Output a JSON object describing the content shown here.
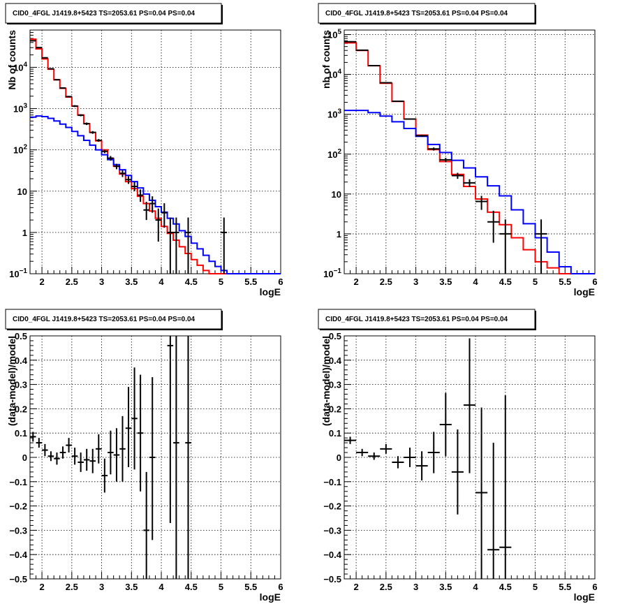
{
  "chart_data": [
    {
      "type": "line",
      "title": "CID0_4FGL J1419.8+5423 TS=2053.61 PS=0.04 PS=0.04",
      "xlabel": "logE",
      "ylabel": "Nb of counts",
      "xlim": [
        1.8,
        6
      ],
      "ylim": [
        0.1,
        80000
      ],
      "yscale": "log",
      "grid": true,
      "xticks": [
        "2",
        "2.5",
        "3",
        "3.5",
        "4",
        "4.5",
        "5",
        "5.5",
        "6"
      ],
      "yticks": [
        {
          "v": 0.1,
          "base": "10",
          "exp": "−1"
        },
        {
          "v": 1,
          "label": "1"
        },
        {
          "v": 10,
          "label": "10"
        },
        {
          "v": 100,
          "base": "10",
          "exp": "2"
        },
        {
          "v": 1000,
          "base": "10",
          "exp": "3"
        },
        {
          "v": 10000,
          "base": "10",
          "exp": "4"
        }
      ],
      "step_series": [
        {
          "color": "#ff0000",
          "edges": [
            1.8,
            1.9,
            2.0,
            2.1,
            2.2,
            2.3,
            2.4,
            2.5,
            2.6,
            2.7,
            2.8,
            2.9,
            3.0,
            3.1,
            3.2,
            3.3,
            3.4,
            3.5,
            3.6,
            3.7,
            3.8,
            3.9,
            4.0,
            4.1,
            4.2,
            4.3,
            4.4,
            4.5,
            4.6,
            4.7,
            4.8,
            4.9,
            5.0,
            5.1,
            5.2,
            5.3,
            5.4,
            5.5,
            5.6,
            5.7,
            5.8,
            5.9,
            6.0
          ],
          "values": [
            48000,
            28000,
            16000,
            9000,
            5000,
            3100,
            1900,
            1150,
            700,
            430,
            265,
            165,
            100,
            62,
            40,
            26,
            17,
            11.5,
            7.5,
            5,
            3.3,
            2.2,
            1.4,
            0.95,
            0.65,
            0.45,
            0.31,
            0.22,
            0.16,
            0.12,
            0.1,
            0.1,
            0.1,
            0.1,
            0.1,
            0.1,
            0.1,
            0.1,
            0.1,
            0.1,
            0.1,
            0.1
          ]
        },
        {
          "color": "#0000ff",
          "edges": [
            1.8,
            1.9,
            2.0,
            2.1,
            2.2,
            2.3,
            2.4,
            2.5,
            2.6,
            2.7,
            2.8,
            2.9,
            3.0,
            3.1,
            3.2,
            3.3,
            3.4,
            3.5,
            3.6,
            3.7,
            3.8,
            3.9,
            4.0,
            4.1,
            4.2,
            4.3,
            4.4,
            4.5,
            4.6,
            4.7,
            4.8,
            4.9,
            5.0,
            5.1,
            5.2,
            5.3,
            5.4,
            5.5,
            5.6,
            5.7,
            5.8,
            5.9,
            6.0
          ],
          "values": [
            620,
            660,
            640,
            580,
            500,
            420,
            350,
            280,
            220,
            170,
            130,
            100,
            76,
            58,
            44,
            33,
            24,
            17,
            12,
            8.5,
            6,
            4.2,
            3.1,
            2.2,
            1.6,
            1.1,
            0.8,
            0.55,
            0.4,
            0.28,
            0.2,
            0.15,
            0.12,
            0.1,
            0.1,
            0.1,
            0.1,
            0.1,
            0.1,
            0.1,
            0.1,
            0.1
          ]
        }
      ],
      "points": [
        {
          "x": 1.85,
          "y": 44000,
          "xerr": 0.05,
          "lo": 43000,
          "hi": 45000
        },
        {
          "x": 1.95,
          "y": 30000,
          "xerr": 0.05,
          "lo": 29000,
          "hi": 31000
        },
        {
          "x": 2.05,
          "y": 17000,
          "xerr": 0.05,
          "lo": 16600,
          "hi": 17400
        },
        {
          "x": 2.15,
          "y": 9200,
          "xerr": 0.05,
          "lo": 9000,
          "hi": 9400
        },
        {
          "x": 2.25,
          "y": 5000,
          "xerr": 0.05,
          "lo": 4860,
          "hi": 5140
        },
        {
          "x": 2.35,
          "y": 3150,
          "xerr": 0.05,
          "lo": 3040,
          "hi": 3260
        },
        {
          "x": 2.45,
          "y": 1950,
          "xerr": 0.05,
          "lo": 1870,
          "hi": 2030
        },
        {
          "x": 2.55,
          "y": 1150,
          "xerr": 0.05,
          "lo": 1090,
          "hi": 1210
        },
        {
          "x": 2.65,
          "y": 690,
          "xerr": 0.05,
          "lo": 650,
          "hi": 730
        },
        {
          "x": 2.75,
          "y": 430,
          "xerr": 0.05,
          "lo": 400,
          "hi": 460
        },
        {
          "x": 2.85,
          "y": 265,
          "xerr": 0.05,
          "lo": 245,
          "hi": 285
        },
        {
          "x": 2.95,
          "y": 170,
          "xerr": 0.05,
          "lo": 157,
          "hi": 183
        },
        {
          "x": 3.05,
          "y": 92,
          "xerr": 0.05,
          "lo": 83,
          "hi": 101
        },
        {
          "x": 3.15,
          "y": 63,
          "xerr": 0.05,
          "lo": 55,
          "hi": 71
        },
        {
          "x": 3.25,
          "y": 40,
          "xerr": 0.05,
          "lo": 34,
          "hi": 46
        },
        {
          "x": 3.35,
          "y": 27,
          "xerr": 0.05,
          "lo": 22,
          "hi": 32
        },
        {
          "x": 3.45,
          "y": 19,
          "xerr": 0.05,
          "lo": 15,
          "hi": 23
        },
        {
          "x": 3.55,
          "y": 13,
          "xerr": 0.05,
          "lo": 10,
          "hi": 16.5
        },
        {
          "x": 3.65,
          "y": 8,
          "xerr": 0.05,
          "lo": 5.5,
          "hi": 11
        },
        {
          "x": 3.75,
          "y": 3.5,
          "xerr": 0.05,
          "lo": 2,
          "hi": 5.5
        },
        {
          "x": 3.85,
          "y": 5,
          "xerr": 0.05,
          "lo": 3,
          "hi": 7.5
        },
        {
          "x": 3.95,
          "y": 2,
          "xerr": 0.05,
          "lo": 0.6,
          "hi": 3.8
        },
        {
          "x": 4.05,
          "y": 3,
          "xerr": 0.05,
          "lo": 1.3,
          "hi": 5.1
        },
        {
          "x": 4.15,
          "y": 1,
          "xerr": 0.05,
          "lo": 0.1,
          "hi": 2.3
        },
        {
          "x": 4.25,
          "y": 1,
          "xerr": 0.05,
          "lo": 0.1,
          "hi": 2.3
        },
        {
          "x": 4.45,
          "y": 1,
          "xerr": 0.05,
          "lo": 0.1,
          "hi": 2.3
        },
        {
          "x": 5.05,
          "y": 1,
          "xerr": 0.05,
          "lo": 0.1,
          "hi": 2.3
        }
      ]
    },
    {
      "type": "line",
      "title": "CID0_4FGL J1419.8+5423 TS=2053.61 PS=0.04 PS=0.04",
      "xlabel": "logE",
      "ylabel": "nb of counts",
      "xlim": [
        1.8,
        6
      ],
      "ylim": [
        0.1,
        130000
      ],
      "yscale": "log",
      "grid": true,
      "xticks": [
        "2",
        "2.5",
        "3",
        "3.5",
        "4",
        "4.5",
        "5",
        "5.5",
        "6"
      ],
      "yticks": [
        {
          "v": 0.1,
          "base": "10",
          "exp": "−1"
        },
        {
          "v": 1,
          "label": "1"
        },
        {
          "v": 10,
          "label": "10"
        },
        {
          "v": 100,
          "base": "10",
          "exp": "2"
        },
        {
          "v": 1000,
          "base": "10",
          "exp": "3"
        },
        {
          "v": 10000,
          "base": "10",
          "exp": "4"
        },
        {
          "v": 100000,
          "base": "10",
          "exp": "5"
        }
      ],
      "step_series": [
        {
          "color": "#ff0000",
          "edges": [
            1.8,
            2.0,
            2.2,
            2.4,
            2.6,
            2.8,
            3.0,
            3.2,
            3.4,
            3.6,
            3.8,
            4.0,
            4.2,
            4.4,
            4.6,
            4.8,
            5.0,
            5.2,
            5.4,
            5.6,
            5.8,
            6.0
          ],
          "values": [
            62000,
            40000,
            16500,
            6000,
            2100,
            760,
            300,
            130,
            65,
            31,
            15.5,
            7.5,
            3.5,
            1.7,
            0.8,
            0.4,
            0.2,
            0.14,
            0.1,
            0.1,
            0.1
          ]
        },
        {
          "color": "#0000ff",
          "edges": [
            1.8,
            2.0,
            2.2,
            2.4,
            2.6,
            2.8,
            3.0,
            3.2,
            3.4,
            3.6,
            3.8,
            4.0,
            4.2,
            4.4,
            4.6,
            4.8,
            5.0,
            5.2,
            5.4,
            5.6,
            5.8,
            6.0
          ],
          "values": [
            1250,
            1250,
            1100,
            900,
            650,
            440,
            280,
            175,
            110,
            70,
            45,
            27,
            16,
            9,
            4,
            1.8,
            0.8,
            0.35,
            0.15,
            0.1,
            0.1
          ]
        }
      ],
      "points": [
        {
          "x": 1.9,
          "y": 66000,
          "xerr": 0.1,
          "lo": 65000,
          "hi": 67000
        },
        {
          "x": 2.1,
          "y": 40500,
          "xerr": 0.1,
          "lo": 40000,
          "hi": 41000
        },
        {
          "x": 2.3,
          "y": 16600,
          "xerr": 0.1,
          "lo": 16400,
          "hi": 16800
        },
        {
          "x": 2.5,
          "y": 6200,
          "xerr": 0.1,
          "lo": 6100,
          "hi": 6300
        },
        {
          "x": 2.7,
          "y": 2120,
          "xerr": 0.1,
          "lo": 2070,
          "hi": 2170
        },
        {
          "x": 2.9,
          "y": 760,
          "xerr": 0.1,
          "lo": 730,
          "hi": 790
        },
        {
          "x": 3.1,
          "y": 290,
          "xerr": 0.1,
          "lo": 273,
          "hi": 307
        },
        {
          "x": 3.3,
          "y": 135,
          "xerr": 0.1,
          "lo": 123,
          "hi": 147
        },
        {
          "x": 3.5,
          "y": 72,
          "xerr": 0.1,
          "lo": 63,
          "hi": 81
        },
        {
          "x": 3.7,
          "y": 29,
          "xerr": 0.1,
          "lo": 24,
          "hi": 34
        },
        {
          "x": 3.9,
          "y": 19,
          "xerr": 0.1,
          "lo": 15,
          "hi": 23.5
        },
        {
          "x": 4.1,
          "y": 6.5,
          "xerr": 0.1,
          "lo": 4,
          "hi": 9
        },
        {
          "x": 4.3,
          "y": 2,
          "xerr": 0.1,
          "lo": 0.6,
          "hi": 3.8
        },
        {
          "x": 4.5,
          "y": 1,
          "xerr": 0.1,
          "lo": 0.1,
          "hi": 2.3
        },
        {
          "x": 5.1,
          "y": 1,
          "xerr": 0.1,
          "lo": 0.1,
          "hi": 2.3
        }
      ]
    },
    {
      "type": "scatter",
      "title": "CID0_4FGL J1419.8+5423 TS=2053.61 PS=0.04 PS=0.04",
      "xlabel": "logE",
      "ylabel": "(data-model)/model",
      "xlim": [
        1.8,
        6
      ],
      "ylim": [
        -0.5,
        0.5
      ],
      "yscale": "linear",
      "grid": true,
      "xticks": [
        "2",
        "2.5",
        "3",
        "3.5",
        "4",
        "4.5",
        "5",
        "5.5",
        "6"
      ],
      "yticks": [
        {
          "v": -0.5,
          "label": "−0.5"
        },
        {
          "v": -0.4,
          "label": "−0.4"
        },
        {
          "v": -0.3,
          "label": "−0.3"
        },
        {
          "v": -0.2,
          "label": "−0.2"
        },
        {
          "v": -0.1,
          "label": "−0.1"
        },
        {
          "v": 0,
          "label": "0"
        },
        {
          "v": 0.1,
          "label": "0.1"
        },
        {
          "v": 0.2,
          "label": "0.2"
        },
        {
          "v": 0.3,
          "label": "0.3"
        },
        {
          "v": 0.4,
          "label": "0.4"
        },
        {
          "v": 0.5,
          "label": "0.5"
        }
      ],
      "points": [
        {
          "x": 1.85,
          "y": 0.085,
          "xerr": 0.05,
          "lo": 0.065,
          "hi": 0.105
        },
        {
          "x": 1.95,
          "y": 0.06,
          "xerr": 0.05,
          "lo": 0.04,
          "hi": 0.08
        },
        {
          "x": 2.05,
          "y": 0.03,
          "xerr": 0.05,
          "lo": 0.005,
          "hi": 0.055
        },
        {
          "x": 2.15,
          "y": 0.005,
          "xerr": 0.05,
          "lo": -0.015,
          "hi": 0.025
        },
        {
          "x": 2.25,
          "y": -0.005,
          "xerr": 0.05,
          "lo": -0.03,
          "hi": 0.02
        },
        {
          "x": 2.35,
          "y": 0.02,
          "xerr": 0.05,
          "lo": -0.005,
          "hi": 0.045
        },
        {
          "x": 2.45,
          "y": 0.05,
          "xerr": 0.05,
          "lo": 0.02,
          "hi": 0.08
        },
        {
          "x": 2.55,
          "y": 0.005,
          "xerr": 0.05,
          "lo": -0.03,
          "hi": 0.04
        },
        {
          "x": 2.65,
          "y": -0.02,
          "xerr": 0.05,
          "lo": -0.06,
          "hi": 0.02
        },
        {
          "x": 2.75,
          "y": -0.01,
          "xerr": 0.05,
          "lo": -0.055,
          "hi": 0.035
        },
        {
          "x": 2.85,
          "y": -0.015,
          "xerr": 0.05,
          "lo": -0.065,
          "hi": 0.035
        },
        {
          "x": 2.95,
          "y": 0.035,
          "xerr": 0.05,
          "lo": -0.025,
          "hi": 0.095
        },
        {
          "x": 3.05,
          "y": -0.075,
          "xerr": 0.05,
          "lo": -0.145,
          "hi": -0.005
        },
        {
          "x": 3.15,
          "y": 0.02,
          "xerr": 0.05,
          "lo": -0.07,
          "hi": 0.11
        },
        {
          "x": 3.25,
          "y": 0.01,
          "xerr": 0.05,
          "lo": -0.1,
          "hi": 0.12
        },
        {
          "x": 3.35,
          "y": 0.035,
          "xerr": 0.05,
          "lo": -0.1,
          "hi": 0.17
        },
        {
          "x": 3.45,
          "y": 0.12,
          "xerr": 0.05,
          "lo": -0.04,
          "hi": 0.29
        },
        {
          "x": 3.55,
          "y": 0.16,
          "xerr": 0.05,
          "lo": -0.05,
          "hi": 0.37
        },
        {
          "x": 3.65,
          "y": 0.1,
          "xerr": 0.05,
          "lo": -0.14,
          "hi": 0.34
        },
        {
          "x": 3.75,
          "y": -0.3,
          "xerr": 0.05,
          "lo": -0.5,
          "hi": -0.06
        },
        {
          "x": 3.85,
          "y": 0.0,
          "xerr": 0.05,
          "lo": -0.34,
          "hi": 0.33
        },
        {
          "x": 4.15,
          "y": 0.46,
          "xerr": 0.05,
          "lo": -0.27,
          "hi": 0.5
        },
        {
          "x": 4.25,
          "y": 0.06,
          "xerr": 0.05,
          "lo": -0.5,
          "hi": 0.5
        },
        {
          "x": 4.45,
          "y": 0.06,
          "xerr": 0.05,
          "lo": -0.5,
          "hi": 0.5
        }
      ]
    },
    {
      "type": "scatter",
      "title": "CID0_4FGL J1419.8+5423 TS=2053.61 PS=0.04 PS=0.04",
      "xlabel": "logE",
      "ylabel": "(data-model)/model",
      "xlim": [
        1.8,
        6
      ],
      "ylim": [
        -0.5,
        0.5
      ],
      "yscale": "linear",
      "grid": true,
      "xticks": [
        "2",
        "2.5",
        "3",
        "3.5",
        "4",
        "4.5",
        "5",
        "5.5",
        "6"
      ],
      "yticks": [
        {
          "v": -0.5,
          "label": "−0.5"
        },
        {
          "v": -0.4,
          "label": "−0.4"
        },
        {
          "v": -0.3,
          "label": "−0.3"
        },
        {
          "v": -0.2,
          "label": "−0.2"
        },
        {
          "v": -0.1,
          "label": "−0.1"
        },
        {
          "v": 0,
          "label": "0"
        },
        {
          "v": 0.1,
          "label": "0.1"
        },
        {
          "v": 0.2,
          "label": "0.2"
        },
        {
          "v": 0.3,
          "label": "0.3"
        },
        {
          "v": 0.4,
          "label": "0.4"
        },
        {
          "v": 0.5,
          "label": "0.5"
        }
      ],
      "points": [
        {
          "x": 1.9,
          "y": 0.07,
          "xerr": 0.1,
          "lo": 0.055,
          "hi": 0.085
        },
        {
          "x": 2.1,
          "y": 0.02,
          "xerr": 0.1,
          "lo": 0.005,
          "hi": 0.035
        },
        {
          "x": 2.3,
          "y": 0.005,
          "xerr": 0.1,
          "lo": -0.01,
          "hi": 0.02
        },
        {
          "x": 2.5,
          "y": 0.035,
          "xerr": 0.1,
          "lo": 0.015,
          "hi": 0.055
        },
        {
          "x": 2.7,
          "y": -0.02,
          "xerr": 0.1,
          "lo": -0.045,
          "hi": 0.005
        },
        {
          "x": 2.9,
          "y": 0.0,
          "xerr": 0.1,
          "lo": -0.04,
          "hi": 0.04
        },
        {
          "x": 3.1,
          "y": -0.035,
          "xerr": 0.1,
          "lo": -0.095,
          "hi": 0.025
        },
        {
          "x": 3.3,
          "y": 0.02,
          "xerr": 0.1,
          "lo": -0.065,
          "hi": 0.105
        },
        {
          "x": 3.5,
          "y": 0.135,
          "xerr": 0.1,
          "lo": 0.005,
          "hi": 0.265
        },
        {
          "x": 3.7,
          "y": -0.06,
          "xerr": 0.1,
          "lo": -0.235,
          "hi": 0.115
        },
        {
          "x": 3.9,
          "y": 0.215,
          "xerr": 0.1,
          "lo": -0.065,
          "hi": 0.49
        },
        {
          "x": 4.1,
          "y": -0.145,
          "xerr": 0.1,
          "lo": -0.5,
          "hi": 0.205
        },
        {
          "x": 4.3,
          "y": -0.38,
          "xerr": 0.1,
          "lo": -0.5,
          "hi": 0.06
        },
        {
          "x": 4.5,
          "y": -0.37,
          "xerr": 0.1,
          "lo": -0.5,
          "hi": 0.255
        }
      ]
    }
  ]
}
